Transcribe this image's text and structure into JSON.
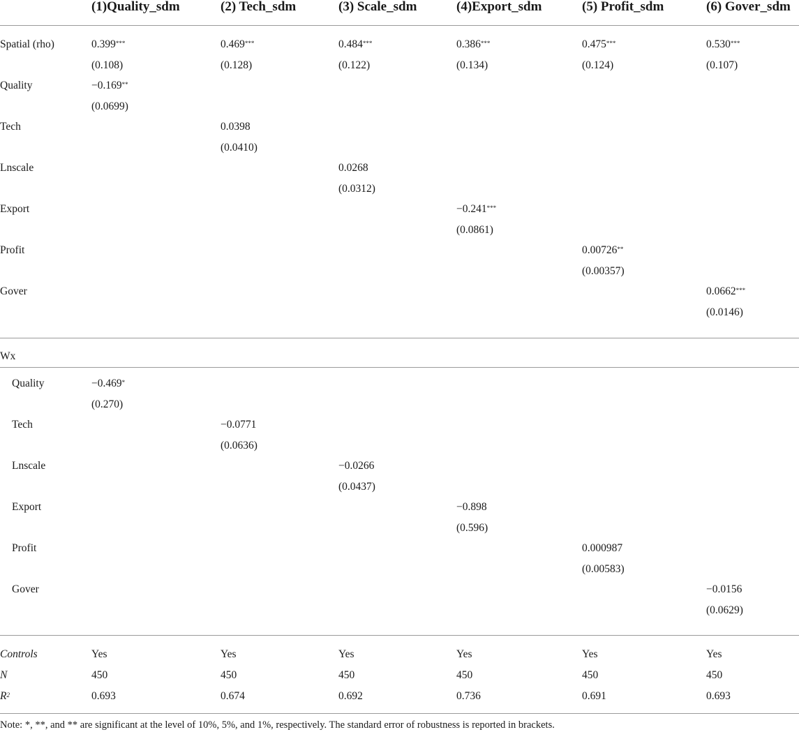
{
  "headers": [
    "(1)Quality_sdm",
    "(2) Tech_sdm",
    "(3) Scale_sdm",
    "(4)Export_sdm",
    "(5) Profit_sdm",
    "(6) Gover_sdm"
  ],
  "main_rows": [
    {
      "label": "Spatial (rho)",
      "coef": [
        "0.399***",
        "0.469***",
        "0.484***",
        "0.386***",
        "0.475***",
        "0.530***"
      ],
      "se": [
        "(0.108)",
        "(0.128)",
        "(0.122)",
        "(0.134)",
        "(0.124)",
        "(0.107)"
      ]
    },
    {
      "label": "Quality",
      "coef": [
        "−0.169**",
        "",
        "",
        "",
        "",
        ""
      ],
      "se": [
        "(0.0699)",
        "",
        "",
        "",
        "",
        ""
      ]
    },
    {
      "label": "Tech",
      "coef": [
        "",
        "0.0398",
        "",
        "",
        "",
        ""
      ],
      "se": [
        "",
        "(0.0410)",
        "",
        "",
        "",
        ""
      ]
    },
    {
      "label": "Lnscale",
      "coef": [
        "",
        "",
        "0.0268",
        "",
        "",
        ""
      ],
      "se": [
        "",
        "",
        "(0.0312)",
        "",
        "",
        ""
      ]
    },
    {
      "label": "Export",
      "coef": [
        "",
        "",
        "",
        "−0.241***",
        "",
        ""
      ],
      "se": [
        "",
        "",
        "",
        "(0.0861)",
        "",
        ""
      ]
    },
    {
      "label": "Profit",
      "coef": [
        "",
        "",
        "",
        "",
        "0.00726**",
        ""
      ],
      "se": [
        "",
        "",
        "",
        "",
        "(0.00357)",
        ""
      ]
    },
    {
      "label": "Gover",
      "coef": [
        "",
        "",
        "",
        "",
        "",
        "0.0662***"
      ],
      "se": [
        "",
        "",
        "",
        "",
        "",
        "(0.0146)"
      ]
    }
  ],
  "wx_label": "Wx",
  "wx_rows": [
    {
      "label": "Quality",
      "coef": [
        "−0.469*",
        "",
        "",
        "",
        "",
        ""
      ],
      "se": [
        "(0.270)",
        "",
        "",
        "",
        "",
        ""
      ]
    },
    {
      "label": "Tech",
      "coef": [
        "",
        "−0.0771",
        "",
        "",
        "",
        ""
      ],
      "se": [
        "",
        "(0.0636)",
        "",
        "",
        "",
        ""
      ]
    },
    {
      "label": "Lnscale",
      "coef": [
        "",
        "",
        "−0.0266",
        "",
        "",
        ""
      ],
      "se": [
        "",
        "",
        "(0.0437)",
        "",
        "",
        ""
      ]
    },
    {
      "label": "Export",
      "coef": [
        "",
        "",
        "",
        "−0.898",
        "",
        ""
      ],
      "se": [
        "",
        "",
        "",
        "(0.596)",
        "",
        ""
      ]
    },
    {
      "label": "Profit",
      "coef": [
        "",
        "",
        "",
        "",
        "0.000987",
        ""
      ],
      "se": [
        "",
        "",
        "",
        "",
        "(0.00583)",
        ""
      ]
    },
    {
      "label": "Gover",
      "coef": [
        "",
        "",
        "",
        "",
        "",
        "−0.0156"
      ],
      "se": [
        "",
        "",
        "",
        "",
        "",
        "(0.0629)"
      ]
    }
  ],
  "footer_rows": [
    {
      "label": "Controls",
      "italic": true,
      "values": [
        "Yes",
        "Yes",
        "Yes",
        "Yes",
        "Yes",
        "Yes"
      ]
    },
    {
      "label": "N",
      "italic": true,
      "values": [
        "450",
        "450",
        "450",
        "450",
        "450",
        "450"
      ]
    },
    {
      "label": "R2",
      "italic": true,
      "values": [
        "0.693",
        "0.674",
        "0.692",
        "0.736",
        "0.691",
        "0.693"
      ]
    }
  ],
  "note": "Note: *, **, and ** are significant at the level of 10%, 5%, and 1%, respectively. The standard error of robustness is reported in brackets."
}
